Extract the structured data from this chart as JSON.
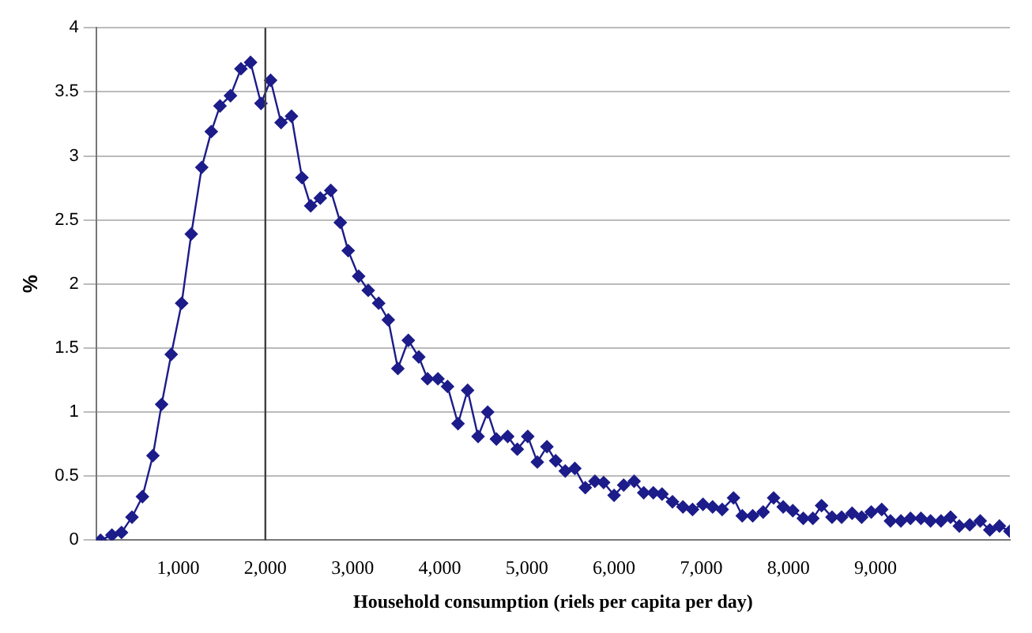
{
  "chart_data": {
    "type": "line",
    "xlabel": "Household consumption (riels per capita per day)",
    "ylabel": "%",
    "x": [
      110,
      240,
      350,
      470,
      590,
      710,
      810,
      920,
      1040,
      1150,
      1270,
      1380,
      1480,
      1600,
      1720,
      1830,
      1950,
      2060,
      2180,
      2300,
      2420,
      2520,
      2630,
      2750,
      2860,
      2950,
      3070,
      3180,
      3300,
      3410,
      3520,
      3640,
      3760,
      3860,
      3980,
      4090,
      4210,
      4320,
      4440,
      4550,
      4650,
      4780,
      4890,
      5010,
      5120,
      5230,
      5330,
      5440,
      5550,
      5670,
      5780,
      5880,
      6000,
      6110,
      6230,
      6340,
      6450,
      6550,
      6670,
      6790,
      6900,
      7020,
      7130,
      7240,
      7370,
      7470,
      7590,
      7710,
      7830,
      7940,
      8050,
      8170,
      8280,
      8380,
      8500,
      8610,
      8730,
      8840,
      8950,
      9070,
      9170,
      9290,
      9400,
      9520,
      9630,
      9750,
      9860,
      9960,
      10080,
      10200,
      10310,
      10420,
      10540
    ],
    "series": [
      {
        "color": "#1c1c8a",
        "values": [
          0,
          0.04,
          0.06,
          0.18,
          0.34,
          0.66,
          1.06,
          1.45,
          1.85,
          2.39,
          2.91,
          3.19,
          3.39,
          3.47,
          3.68,
          3.73,
          3.41,
          3.59,
          3.26,
          3.31,
          2.83,
          2.61,
          2.67,
          2.73,
          2.48,
          2.26,
          2.06,
          1.95,
          1.85,
          1.72,
          1.34,
          1.56,
          1.43,
          1.26,
          1.26,
          1.2,
          0.91,
          1.17,
          0.81,
          1.0,
          0.79,
          0.81,
          0.71,
          0.81,
          0.61,
          0.73,
          0.62,
          0.54,
          0.56,
          0.41,
          0.46,
          0.45,
          0.35,
          0.43,
          0.46,
          0.37,
          0.37,
          0.36,
          0.3,
          0.26,
          0.24,
          0.28,
          0.26,
          0.24,
          0.33,
          0.19,
          0.19,
          0.22,
          0.33,
          0.26,
          0.23,
          0.17,
          0.17,
          0.27,
          0.18,
          0.18,
          0.21,
          0.18,
          0.22,
          0.24,
          0.15,
          0.15,
          0.17,
          0.17,
          0.15,
          0.15,
          0.18,
          0.11,
          0.12,
          0.15,
          0.08,
          0.11,
          0.07
        ]
      }
    ],
    "xlim": [
      60,
      10540
    ],
    "ylim": [
      0,
      4
    ],
    "xticks": [
      {
        "value": 1000,
        "label": "1,000"
      },
      {
        "value": 2000,
        "label": "2,000"
      },
      {
        "value": 3000,
        "label": "3,000"
      },
      {
        "value": 4000,
        "label": "4,000"
      },
      {
        "value": 5000,
        "label": "5,000"
      },
      {
        "value": 6000,
        "label": "6,000"
      },
      {
        "value": 7000,
        "label": "7,000"
      },
      {
        "value": 8000,
        "label": "8,000"
      },
      {
        "value": 9000,
        "label": "9,000"
      }
    ],
    "yticks": [
      0,
      0.5,
      1,
      1.5,
      2,
      2.5,
      3,
      3.5,
      4
    ],
    "ref_lines": [
      {
        "axis": "x",
        "value": 2000,
        "color": "#404040"
      }
    ],
    "grid": "y",
    "marker": "diamond",
    "line_style": "solid",
    "legend": false
  }
}
